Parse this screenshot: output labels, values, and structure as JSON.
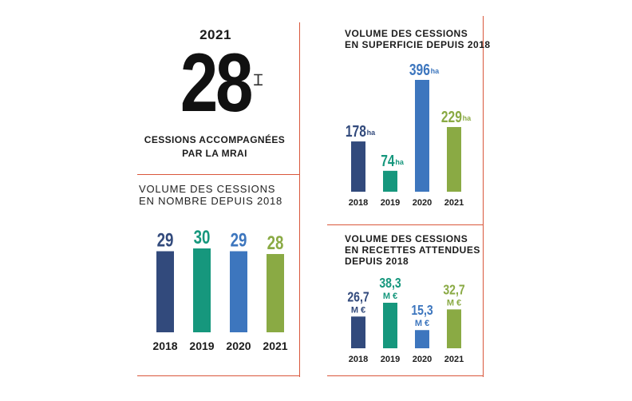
{
  "kpi": {
    "year": "2021",
    "value": "28",
    "caption": "CESSIONS ACCOMPAGNÉES\nPAR LA MRAI"
  },
  "colors": {
    "rule": "#d9573b",
    "y2018": "#324a7c",
    "y2019": "#16977d",
    "y2020": "#3d76be",
    "y2021": "#8aaa44"
  },
  "chart_data": [
    {
      "id": "nombre",
      "type": "bar",
      "title": "VOLUME DES CESSIONS\nEN NOMBRE DEPUIS 2018",
      "categories": [
        "2018",
        "2019",
        "2020",
        "2021"
      ],
      "values": [
        29,
        30,
        29,
        28
      ],
      "value_labels": [
        "29",
        "30",
        "29",
        "28"
      ],
      "units": [
        "",
        "",
        "",
        ""
      ]
    },
    {
      "id": "superficie",
      "type": "bar",
      "title": "VOLUME DES CESSIONS\nEN SUPERFICIE DEPUIS 2018",
      "categories": [
        "2018",
        "2019",
        "2020",
        "2021"
      ],
      "values": [
        178,
        74,
        396,
        229
      ],
      "value_labels": [
        "178",
        "74",
        "396",
        "229"
      ],
      "units": [
        "ha",
        "ha",
        "ha",
        "ha"
      ]
    },
    {
      "id": "recettes",
      "type": "bar",
      "title": "VOLUME DES CESSIONS\nEN RECETTES ATTENDUES\nDEPUIS 2018",
      "categories": [
        "2018",
        "2019",
        "2020",
        "2021"
      ],
      "values": [
        26.7,
        38.3,
        15.3,
        32.7
      ],
      "value_labels": [
        "26,7",
        "38,3",
        "15,3",
        "32,7"
      ],
      "units": [
        "M €",
        "M €",
        "M €",
        "M €"
      ]
    }
  ]
}
